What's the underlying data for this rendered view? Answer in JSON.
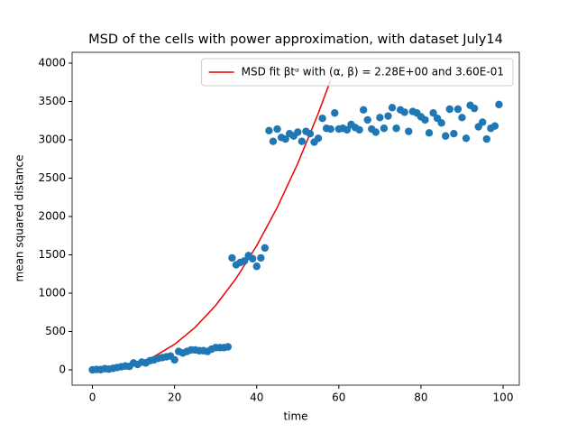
{
  "chart_data": {
    "type": "scatter",
    "title": "MSD of the cells with power approximation, with dataset July14",
    "x_label": "time",
    "y_label": "mean squared distance",
    "xlim": [
      -4.95,
      103.95
    ],
    "ylim": [
      -200,
      4141
    ],
    "xticks": [
      0,
      20,
      40,
      60,
      80,
      100
    ],
    "yticks": [
      0,
      500,
      1000,
      1500,
      2000,
      2500,
      3000,
      3500,
      4000
    ],
    "legend": "upper right",
    "series": [
      {
        "type": "line",
        "name": "MSD fit βtᵅ with (α, β) =  2.28E+00 and 3.60E-01",
        "color": "#ee0000",
        "x": [
          0,
          5,
          10,
          15,
          20,
          25,
          30,
          35,
          40,
          45,
          50,
          55,
          58
        ],
        "values": [
          0,
          14.1,
          68.6,
          173,
          333,
          554,
          840,
          1194,
          1619,
          2118,
          2692,
          3345,
          3780
        ]
      },
      {
        "type": "scatter",
        "color": "#1f77b4",
        "x": [
          0,
          1,
          2,
          3,
          4,
          5,
          6,
          7,
          8,
          9,
          10,
          11,
          12,
          13,
          14,
          15,
          16,
          17,
          18,
          19,
          20,
          21,
          22,
          23,
          24,
          25,
          26,
          27,
          28,
          29,
          30,
          31,
          32,
          33,
          34,
          35,
          36,
          37,
          38,
          39,
          40,
          41,
          42,
          43,
          44,
          45,
          46,
          47,
          48,
          49,
          50,
          51,
          52,
          53,
          54,
          55,
          56,
          57,
          58,
          59,
          60,
          61,
          62,
          63,
          64,
          65,
          66,
          67,
          68,
          69,
          70,
          71,
          72,
          73,
          74,
          75,
          76,
          77,
          78,
          79,
          80,
          81,
          82,
          83,
          84,
          85,
          86,
          87,
          88,
          89,
          90,
          91,
          92,
          93,
          94,
          95,
          96,
          97,
          98,
          99
        ],
        "values": [
          0,
          5,
          3,
          15,
          10,
          20,
          30,
          40,
          50,
          45,
          90,
          70,
          100,
          90,
          120,
          130,
          150,
          160,
          170,
          180,
          130,
          240,
          220,
          240,
          260,
          260,
          250,
          250,
          240,
          270,
          290,
          290,
          290,
          300,
          1460,
          1370,
          1400,
          1420,
          1490,
          1450,
          1350,
          1460,
          1590,
          3120,
          2980,
          3140,
          3030,
          3010,
          3080,
          3050,
          3100,
          2980,
          3110,
          3080,
          2970,
          3020,
          3280,
          3150,
          3140,
          3350,
          3140,
          3150,
          3130,
          3200,
          3160,
          3130,
          3390,
          3260,
          3140,
          3100,
          3290,
          3150,
          3310,
          3420,
          3150,
          3390,
          3360,
          3110,
          3370,
          3350,
          3300,
          3260,
          3090,
          3350,
          3280,
          3220,
          3050,
          3400,
          3080,
          3400,
          3290,
          3020,
          3450,
          3410,
          3170,
          3230,
          3010,
          3150,
          3180,
          3460
        ]
      }
    ]
  }
}
